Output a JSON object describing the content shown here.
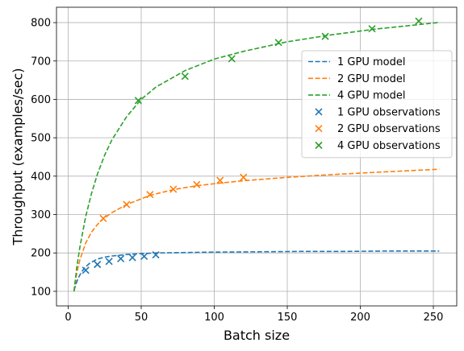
{
  "chart_data": {
    "type": "line",
    "xlabel": "Batch size",
    "ylabel": "Throughput (examples/sec)",
    "xlim": [
      -8,
      266
    ],
    "ylim": [
      62,
      840
    ],
    "xticks": [
      0,
      50,
      100,
      150,
      200,
      250
    ],
    "yticks": [
      100,
      200,
      300,
      400,
      500,
      600,
      700,
      800
    ],
    "grid": true,
    "legend_position": "right",
    "series": [
      {
        "name": "1 GPU model",
        "kind": "line",
        "style": "dashed",
        "color": "#1f77b4",
        "x": [
          4,
          6,
          8,
          10,
          12,
          15,
          20,
          25,
          30,
          40,
          50,
          60,
          80,
          100,
          130,
          160,
          190,
          220,
          254
        ],
        "y": [
          102,
          126,
          143,
          155,
          164,
          174,
          184,
          189,
          192,
          196,
          198,
          200,
          201,
          202,
          203,
          204,
          204,
          205,
          205
        ]
      },
      {
        "name": "2 GPU model",
        "kind": "line",
        "style": "dashed",
        "color": "#ff7f0e",
        "x": [
          4,
          6,
          8,
          12,
          16,
          20,
          24,
          30,
          40,
          56,
          72,
          88,
          104,
          120,
          150,
          180,
          210,
          254
        ],
        "y": [
          100,
          150,
          182,
          226,
          254,
          274,
          289,
          305,
          326,
          350,
          365,
          375,
          382,
          388,
          397,
          404,
          410,
          418
        ]
      },
      {
        "name": "4 GPU model",
        "kind": "line",
        "style": "dashed",
        "color": "#2ca02c",
        "x": [
          4,
          6,
          8,
          12,
          16,
          20,
          25,
          30,
          40,
          50,
          60,
          80,
          100,
          120,
          150,
          180,
          210,
          253
        ],
        "y": [
          100,
          165,
          215,
          295,
          355,
          405,
          455,
          495,
          555,
          600,
          632,
          675,
          705,
          725,
          750,
          768,
          783,
          800
        ]
      },
      {
        "name": "1 GPU observations",
        "kind": "scatter",
        "marker": "x",
        "color": "#1f77b4",
        "x": [
          12,
          20,
          28,
          36,
          44,
          52,
          60
        ],
        "y": [
          155,
          170,
          178,
          185,
          188,
          191,
          195
        ]
      },
      {
        "name": "2 GPU observations",
        "kind": "scatter",
        "marker": "x",
        "color": "#ff7f0e",
        "x": [
          24,
          40,
          56,
          72,
          88,
          104,
          120
        ],
        "y": [
          290,
          326,
          352,
          366,
          378,
          389,
          397
        ]
      },
      {
        "name": "4 GPU observations",
        "kind": "scatter",
        "marker": "x",
        "color": "#2ca02c",
        "x": [
          48,
          80,
          112,
          144,
          176,
          208,
          240
        ],
        "y": [
          597,
          660,
          706,
          748,
          764,
          784,
          804
        ]
      }
    ]
  }
}
